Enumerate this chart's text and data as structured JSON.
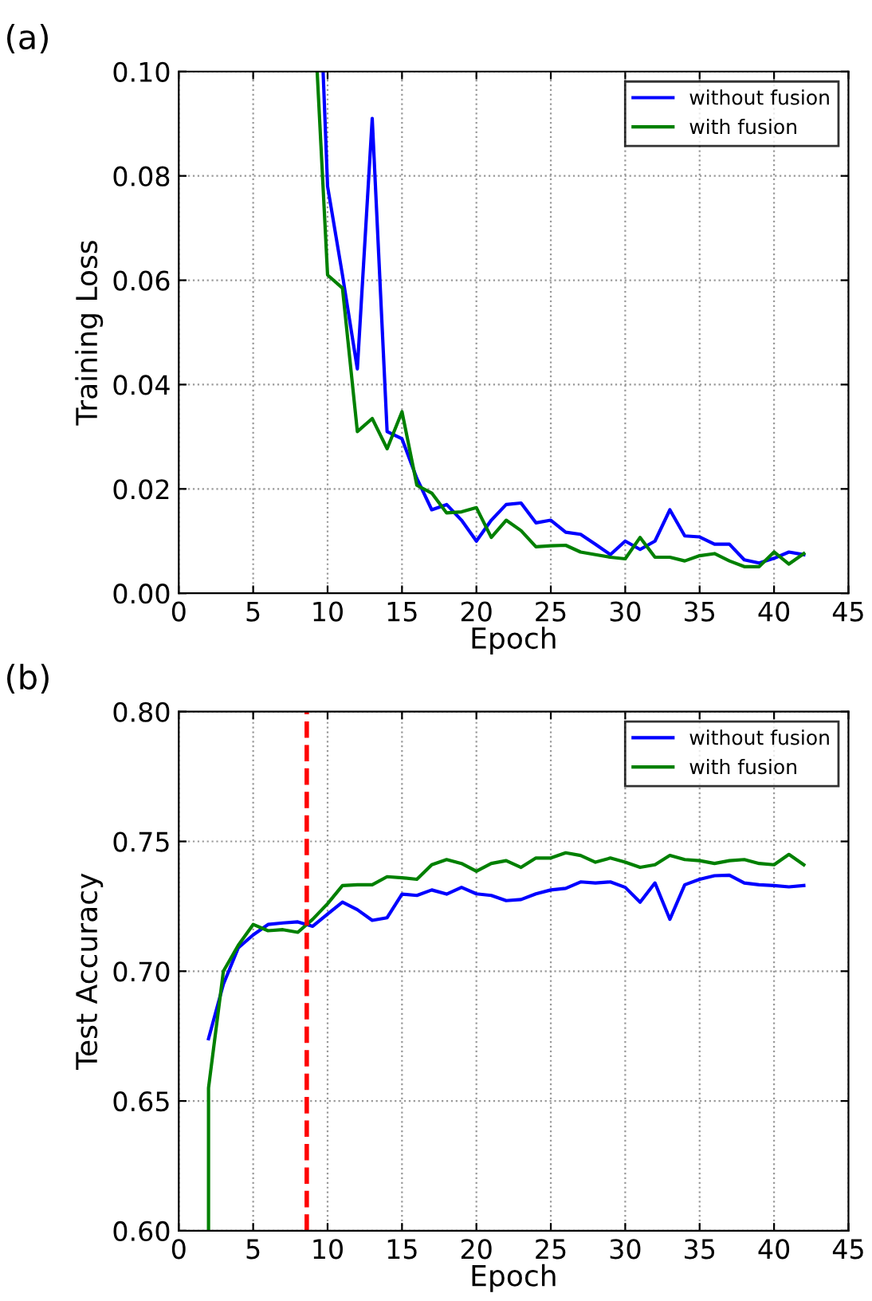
{
  "chart_data": [
    {
      "type": "line",
      "xlabel": "Epoch",
      "ylabel": "Training Loss",
      "annotations": [
        "(a)"
      ],
      "xlim": [
        0,
        45
      ],
      "ylim": [
        0,
        0.1
      ],
      "xticks": [
        0,
        5,
        10,
        15,
        20,
        25,
        30,
        35,
        40,
        45
      ],
      "yticks": [
        {
          "value": 0,
          "label": "0.00"
        },
        {
          "value": 0.02,
          "label": "0.02"
        },
        {
          "value": 0.04,
          "label": "0.04"
        },
        {
          "value": 0.06,
          "label": "0.06"
        },
        {
          "value": 0.08,
          "label": "0.08"
        },
        {
          "value": 0.1,
          "label": "0.10"
        }
      ],
      "grid": true,
      "legend": "top right",
      "marker": "none",
      "line_style": "solid",
      "series": [
        {
          "name": "without fusion",
          "color": "#0000ff",
          "x": [
            9.7,
            10,
            11,
            12,
            13,
            14,
            15,
            16,
            17,
            18,
            19,
            20,
            21,
            22,
            23,
            24,
            25,
            26,
            27,
            28,
            29,
            30,
            31,
            32,
            33,
            34,
            35,
            36,
            37,
            38,
            39,
            40,
            41,
            42
          ],
          "values": [
            0.1,
            0.078,
            0.061,
            0.043,
            0.091,
            0.031,
            0.0296,
            0.022,
            0.016,
            0.017,
            0.014,
            0.01,
            0.014,
            0.017,
            0.0173,
            0.0135,
            0.014,
            0.0117,
            0.0113,
            0.0094,
            0.0074,
            0.01,
            0.0084,
            0.01,
            0.016,
            0.011,
            0.0108,
            0.0094,
            0.0094,
            0.0064,
            0.0058,
            0.0067,
            0.0079,
            0.0074
          ]
        },
        {
          "name": "with fusion",
          "color": "#008000",
          "x": [
            9.3,
            10,
            11,
            12,
            13,
            14,
            15,
            16,
            17,
            18,
            19,
            20,
            21,
            22,
            23,
            24,
            25,
            26,
            27,
            28,
            29,
            30,
            31,
            32,
            33,
            34,
            35,
            36,
            37,
            38,
            39,
            40,
            41,
            42
          ],
          "values": [
            0.1,
            0.061,
            0.0585,
            0.031,
            0.0335,
            0.0277,
            0.0348,
            0.0207,
            0.0192,
            0.0154,
            0.0156,
            0.0164,
            0.0107,
            0.014,
            0.012,
            0.0089,
            0.0091,
            0.0092,
            0.0079,
            0.0074,
            0.0069,
            0.0066,
            0.0107,
            0.0069,
            0.0069,
            0.0062,
            0.0072,
            0.0076,
            0.0062,
            0.0051,
            0.0051,
            0.0079,
            0.0056,
            0.0076
          ]
        }
      ]
    },
    {
      "type": "line",
      "xlabel": "Epoch",
      "ylabel": "Test Accuracy",
      "annotations": [
        "(b)"
      ],
      "xlim": [
        0,
        45
      ],
      "ylim": [
        0.6,
        0.8
      ],
      "xticks": [
        0,
        5,
        10,
        15,
        20,
        25,
        30,
        35,
        40,
        45
      ],
      "yticks": [
        {
          "value": 0.6,
          "label": "0.60"
        },
        {
          "value": 0.65,
          "label": "0.65"
        },
        {
          "value": 0.7,
          "label": "0.70"
        },
        {
          "value": 0.75,
          "label": "0.75"
        },
        {
          "value": 0.8,
          "label": "0.80"
        }
      ],
      "grid": true,
      "legend": "top right",
      "marker": "none",
      "line_style": "solid",
      "ref_lines": [
        {
          "axis": "x",
          "value": 8.6,
          "color": "#ff0000",
          "line_style": "dashed"
        }
      ],
      "series": [
        {
          "name": "without fusion",
          "color": "#0000ff",
          "x": [
            2,
            3,
            4,
            5,
            6,
            7,
            8,
            9,
            10,
            11,
            12,
            13,
            14,
            15,
            16,
            17,
            18,
            19,
            20,
            21,
            22,
            23,
            24,
            25,
            26,
            27,
            28,
            29,
            30,
            31,
            32,
            33,
            34,
            35,
            36,
            37,
            38,
            39,
            40,
            41,
            42
          ],
          "values": [
            0.674,
            0.695,
            0.709,
            0.714,
            0.718,
            0.7186,
            0.719,
            0.7173,
            0.722,
            0.7266,
            0.7237,
            0.7196,
            0.7206,
            0.7297,
            0.7292,
            0.7313,
            0.7297,
            0.7323,
            0.7298,
            0.7292,
            0.7272,
            0.7276,
            0.7298,
            0.7313,
            0.7319,
            0.7344,
            0.734,
            0.7344,
            0.7323,
            0.7266,
            0.734,
            0.72,
            0.7333,
            0.7354,
            0.7368,
            0.737,
            0.734,
            0.7333,
            0.733,
            0.7325,
            0.733
          ]
        },
        {
          "name": "with fusion",
          "color": "#008000",
          "x": [
            2,
            2,
            3,
            4,
            5,
            6,
            7,
            8,
            9,
            10,
            11,
            12,
            13,
            14,
            15,
            16,
            17,
            18,
            19,
            20,
            21,
            22,
            23,
            24,
            25,
            26,
            27,
            28,
            29,
            30,
            31,
            32,
            33,
            34,
            35,
            36,
            37,
            38,
            39,
            40,
            41,
            42
          ],
          "values": [
            0.6,
            0.655,
            0.7,
            0.71,
            0.718,
            0.7156,
            0.716,
            0.715,
            0.72,
            0.726,
            0.733,
            0.7333,
            0.7333,
            0.7364,
            0.736,
            0.7354,
            0.741,
            0.743,
            0.7415,
            0.7385,
            0.7415,
            0.7426,
            0.74,
            0.7436,
            0.7436,
            0.7456,
            0.7446,
            0.742,
            0.7436,
            0.742,
            0.74,
            0.741,
            0.7446,
            0.743,
            0.7426,
            0.7415,
            0.7426,
            0.743,
            0.7415,
            0.741,
            0.745,
            0.741
          ]
        }
      ]
    }
  ]
}
